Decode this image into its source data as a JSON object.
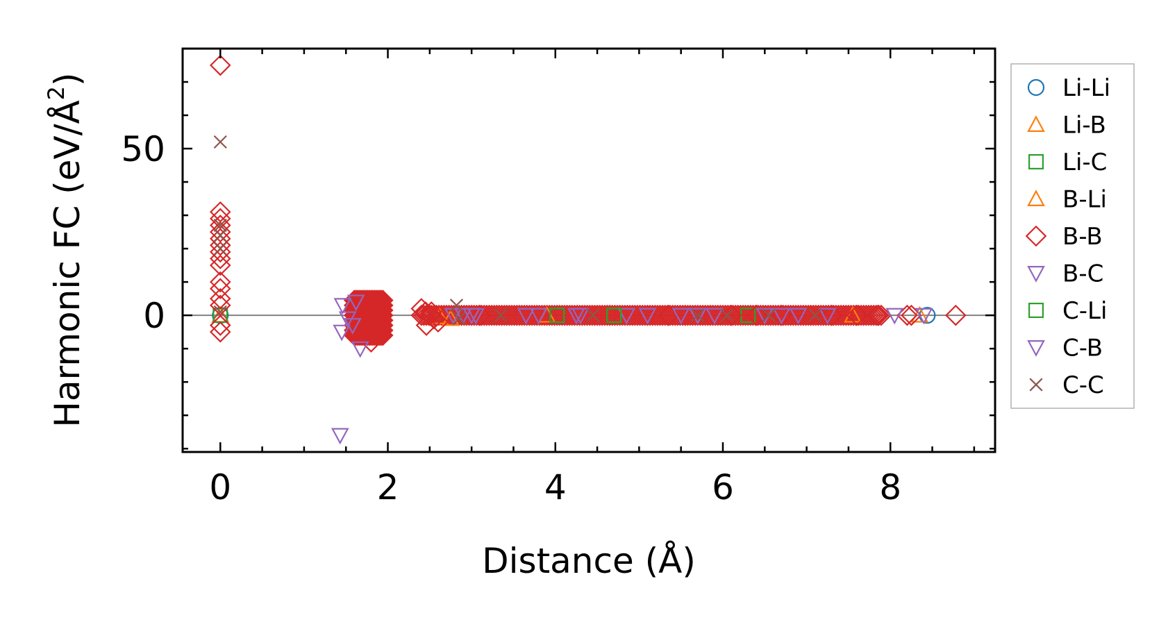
{
  "chart_data": {
    "type": "scatter",
    "xlabel": "Distance (Å)",
    "ylabel_main": "Harmonic FC (eV/Å",
    "ylabel_sup": "2",
    "ylabel_close": ")",
    "xlim": [
      -0.45,
      9.25
    ],
    "ylim": [
      -41,
      80
    ],
    "xticks": [
      0,
      2,
      4,
      6,
      8
    ],
    "xtick_labels": [
      "0",
      "2",
      "4",
      "6",
      "8"
    ],
    "yticks": [
      0,
      50
    ],
    "ytick_labels": [
      "0",
      "50"
    ],
    "x_minor_step": 0.5,
    "y_minor_step": 10,
    "zero_line": true,
    "legend_position": "outside-right",
    "series": [
      {
        "name": "Li-Li",
        "marker": "circle",
        "color": "#1f77b4",
        "x": [
          0,
          8.44
        ],
        "y": [
          0,
          0
        ]
      },
      {
        "name": "Li-B",
        "marker": "triangle-up",
        "color": "#ff7f0e",
        "x": [
          0,
          2.62,
          2.75,
          3.9
        ],
        "y": [
          0,
          -0.5,
          -1,
          0
        ]
      },
      {
        "name": "Li-C",
        "marker": "square",
        "color": "#2ca02c",
        "x": [
          0,
          4.02,
          4.7,
          6.3
        ],
        "y": [
          0,
          0,
          0,
          0
        ]
      },
      {
        "name": "B-Li",
        "marker": "triangle-up",
        "color": "#ff7f0e",
        "x": [
          7.55,
          8.35
        ],
        "y": [
          0,
          0
        ]
      },
      {
        "name": "B-B",
        "marker": "diamond",
        "color": "#d62728",
        "x": [
          0,
          0,
          0,
          0,
          0,
          0,
          0,
          0,
          0,
          0,
          0,
          0,
          0,
          0,
          0,
          0,
          1.8,
          1.86,
          1.75,
          2.4,
          2.45,
          2.5,
          2.55,
          2.6,
          2.46,
          2.52,
          3.0,
          3.1,
          4.65,
          5.1,
          5.35,
          5.55,
          5.85,
          6.1,
          6.4,
          6.7,
          7.05,
          7.3,
          7.6,
          7.85,
          8.2,
          8.25,
          8.78
        ],
        "y": [
          75,
          31,
          29,
          27,
          25,
          23,
          21,
          19,
          17,
          15,
          10,
          8,
          5,
          3,
          -3,
          -5,
          -8,
          2,
          4,
          2,
          1,
          0,
          -1,
          -2,
          -3,
          1,
          0,
          0,
          0,
          0,
          0,
          0,
          0,
          0,
          0,
          0,
          0,
          0,
          0,
          0,
          0,
          0,
          0
        ],
        "fill_x_range": [
          1.6,
          1.95
        ],
        "fill_y_range": [
          -6,
          5
        ],
        "fill_band": [
          2.4,
          7.9
        ]
      },
      {
        "name": "B-C",
        "marker": "triangle-down",
        "color": "#9467bd",
        "x": [
          1.43,
          1.46,
          1.52,
          1.58,
          1.62,
          1.67,
          1.45,
          2.78,
          2.9,
          3.05,
          3.65,
          3.8,
          4.25,
          4.85,
          5.1,
          5.5,
          5.9,
          6.5,
          6.9,
          7.25,
          8.05,
          8.4
        ],
        "y": [
          -36,
          3,
          -1,
          -3,
          4,
          -10,
          -5,
          0,
          0,
          0,
          0,
          0,
          0,
          0,
          0,
          0,
          0,
          0,
          0,
          0,
          0,
          0
        ]
      },
      {
        "name": "C-Li",
        "marker": "square",
        "color": "#2ca02c",
        "x": [
          4.02,
          4.7
        ],
        "y": [
          0,
          0
        ]
      },
      {
        "name": "C-B",
        "marker": "triangle-down",
        "color": "#9467bd",
        "x": [
          3.0,
          4.3,
          5.7,
          6.7
        ],
        "y": [
          0,
          0,
          0,
          0
        ]
      },
      {
        "name": "C-C",
        "marker": "x",
        "color": "#8c564b",
        "x": [
          0,
          0,
          0,
          0,
          0,
          2.82,
          2.85,
          3.35,
          4.45,
          5.7,
          6.05,
          6.55,
          7.1
        ],
        "y": [
          52,
          27,
          24,
          20,
          1,
          3,
          -1,
          0,
          0,
          0,
          0,
          0,
          0
        ]
      }
    ]
  }
}
